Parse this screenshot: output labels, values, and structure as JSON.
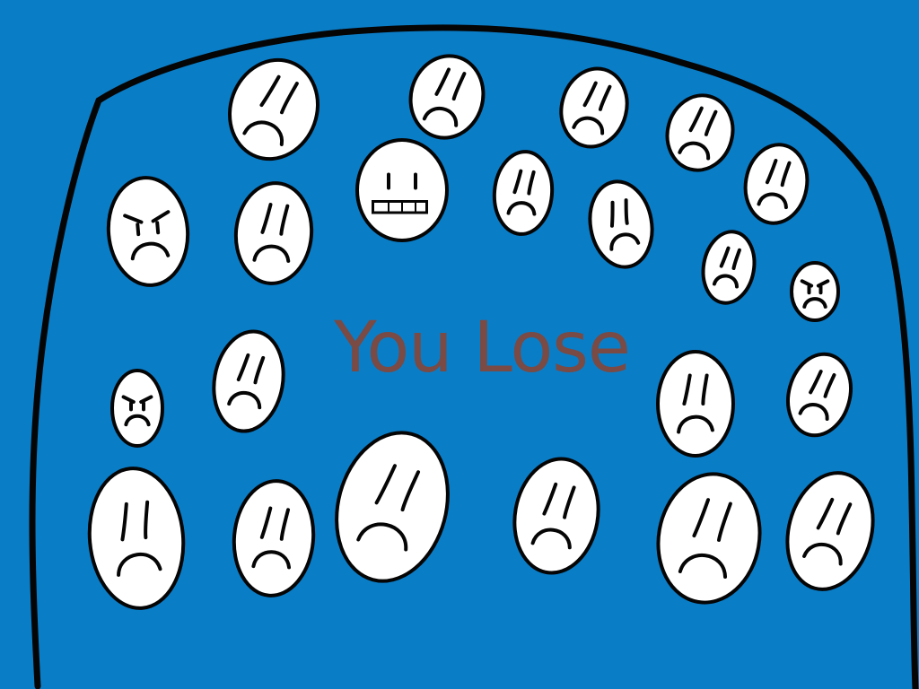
{
  "game": {
    "result_text": "You Lose"
  },
  "colors": {
    "background": "#0a7dc7",
    "outline": "#050505",
    "face_fill": "#ffffff",
    "text": "#7a4a44"
  },
  "icons": {
    "face": "sad-face-icon",
    "angry": "angry-face-icon",
    "grimace": "grimace-face-icon"
  }
}
